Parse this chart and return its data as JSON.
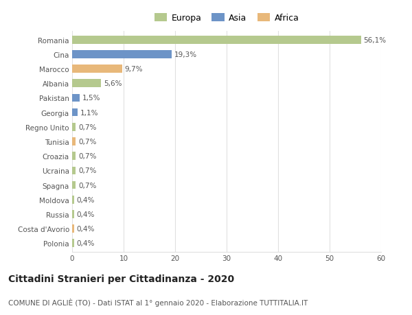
{
  "categories": [
    "Romania",
    "Cina",
    "Marocco",
    "Albania",
    "Pakistan",
    "Georgia",
    "Regno Unito",
    "Tunisia",
    "Croazia",
    "Ucraina",
    "Spagna",
    "Moldova",
    "Russia",
    "Costa d'Avorio",
    "Polonia"
  ],
  "values": [
    56.1,
    19.3,
    9.7,
    5.6,
    1.5,
    1.1,
    0.7,
    0.7,
    0.7,
    0.7,
    0.7,
    0.4,
    0.4,
    0.4,
    0.4
  ],
  "labels": [
    "56,1%",
    "19,3%",
    "9,7%",
    "5,6%",
    "1,5%",
    "1,1%",
    "0,7%",
    "0,7%",
    "0,7%",
    "0,7%",
    "0,7%",
    "0,4%",
    "0,4%",
    "0,4%",
    "0,4%"
  ],
  "colors": [
    "#b5c98e",
    "#6d94c7",
    "#e8b87a",
    "#b5c98e",
    "#6d94c7",
    "#6d94c7",
    "#b5c98e",
    "#e8b87a",
    "#b5c98e",
    "#b5c98e",
    "#b5c98e",
    "#b5c98e",
    "#b5c98e",
    "#e8b87a",
    "#b5c98e"
  ],
  "legend_labels": [
    "Europa",
    "Asia",
    "Africa"
  ],
  "legend_colors": [
    "#b5c98e",
    "#6d94c7",
    "#e8b87a"
  ],
  "title": "Cittadini Stranieri per Cittadinanza - 2020",
  "subtitle": "COMUNE DI AGLIÈ (TO) - Dati ISTAT al 1° gennaio 2020 - Elaborazione TUTTITALIA.IT",
  "xlim": [
    0,
    60
  ],
  "xticks": [
    0,
    10,
    20,
    30,
    40,
    50,
    60
  ],
  "background_color": "#ffffff",
  "grid_color": "#e0e0e0",
  "bar_height": 0.55,
  "label_fontsize": 7.5,
  "tick_fontsize": 7.5,
  "title_fontsize": 10,
  "subtitle_fontsize": 7.5
}
